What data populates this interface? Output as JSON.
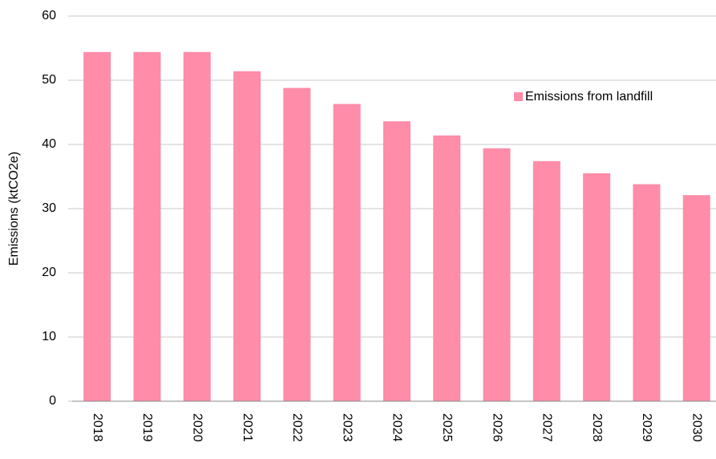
{
  "chart_data": {
    "type": "bar",
    "y_label": "Emissions (ktCO2e)",
    "categories": [
      "2018",
      "2019",
      "2020",
      "2021",
      "2022",
      "2023",
      "2024",
      "2025",
      "2026",
      "2027",
      "2028",
      "2029",
      "2030"
    ],
    "series": [
      {
        "name": "Emissions from landfill",
        "color": "#ff8ca8",
        "values": [
          54.4,
          54.4,
          54.4,
          51.4,
          48.8,
          46.3,
          43.6,
          41.4,
          39.4,
          37.4,
          35.5,
          33.8,
          32.1
        ]
      }
    ],
    "ylim": [
      0,
      60
    ],
    "yticks": [
      0,
      10,
      20,
      30,
      40,
      50,
      60
    ],
    "grid": true,
    "legend": "upper right"
  }
}
